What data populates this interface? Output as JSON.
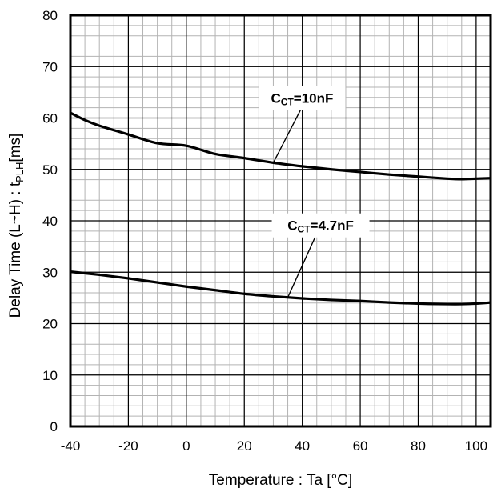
{
  "chart_data": {
    "type": "line",
    "xlabel": "Temperature : Ta [°C]",
    "ylabel": {
      "prefix": "Delay Time (L~H) : t",
      "sub": "PLH",
      "suffix": "[ms]"
    },
    "xlim": [
      -40,
      105
    ],
    "ylim": [
      0,
      80
    ],
    "x_ticks": [
      -40,
      -20,
      0,
      20,
      40,
      60,
      80,
      100
    ],
    "y_ticks": [
      0,
      10,
      20,
      30,
      40,
      50,
      60,
      70,
      80
    ],
    "minor_x_step": 5,
    "minor_y_step": 2,
    "grid": true,
    "series": [
      {
        "name": {
          "main": "C",
          "sub": "CT",
          "rest": "=10nF"
        },
        "x": [
          -40,
          -35,
          -30,
          -20,
          -10,
          0,
          10,
          20,
          30,
          40,
          50,
          60,
          70,
          80,
          90,
          95,
          100,
          105
        ],
        "y": [
          61.0,
          59.6,
          58.5,
          56.8,
          55.1,
          54.6,
          53.0,
          52.2,
          51.3,
          50.6,
          50.0,
          49.5,
          49.0,
          48.6,
          48.2,
          48.1,
          48.2,
          48.3
        ],
        "label_anchor_x": 30
      },
      {
        "name": {
          "main": "C",
          "sub": "CT",
          "rest": "=4.7nF"
        },
        "x": [
          -40,
          -30,
          -20,
          -10,
          0,
          10,
          20,
          30,
          40,
          50,
          60,
          70,
          80,
          90,
          95,
          100,
          105
        ],
        "y": [
          30.1,
          29.5,
          28.8,
          28.0,
          27.2,
          26.5,
          25.8,
          25.3,
          24.9,
          24.6,
          24.4,
          24.1,
          23.9,
          23.8,
          23.8,
          23.9,
          24.1
        ],
        "label_anchor_x": 35
      }
    ]
  }
}
